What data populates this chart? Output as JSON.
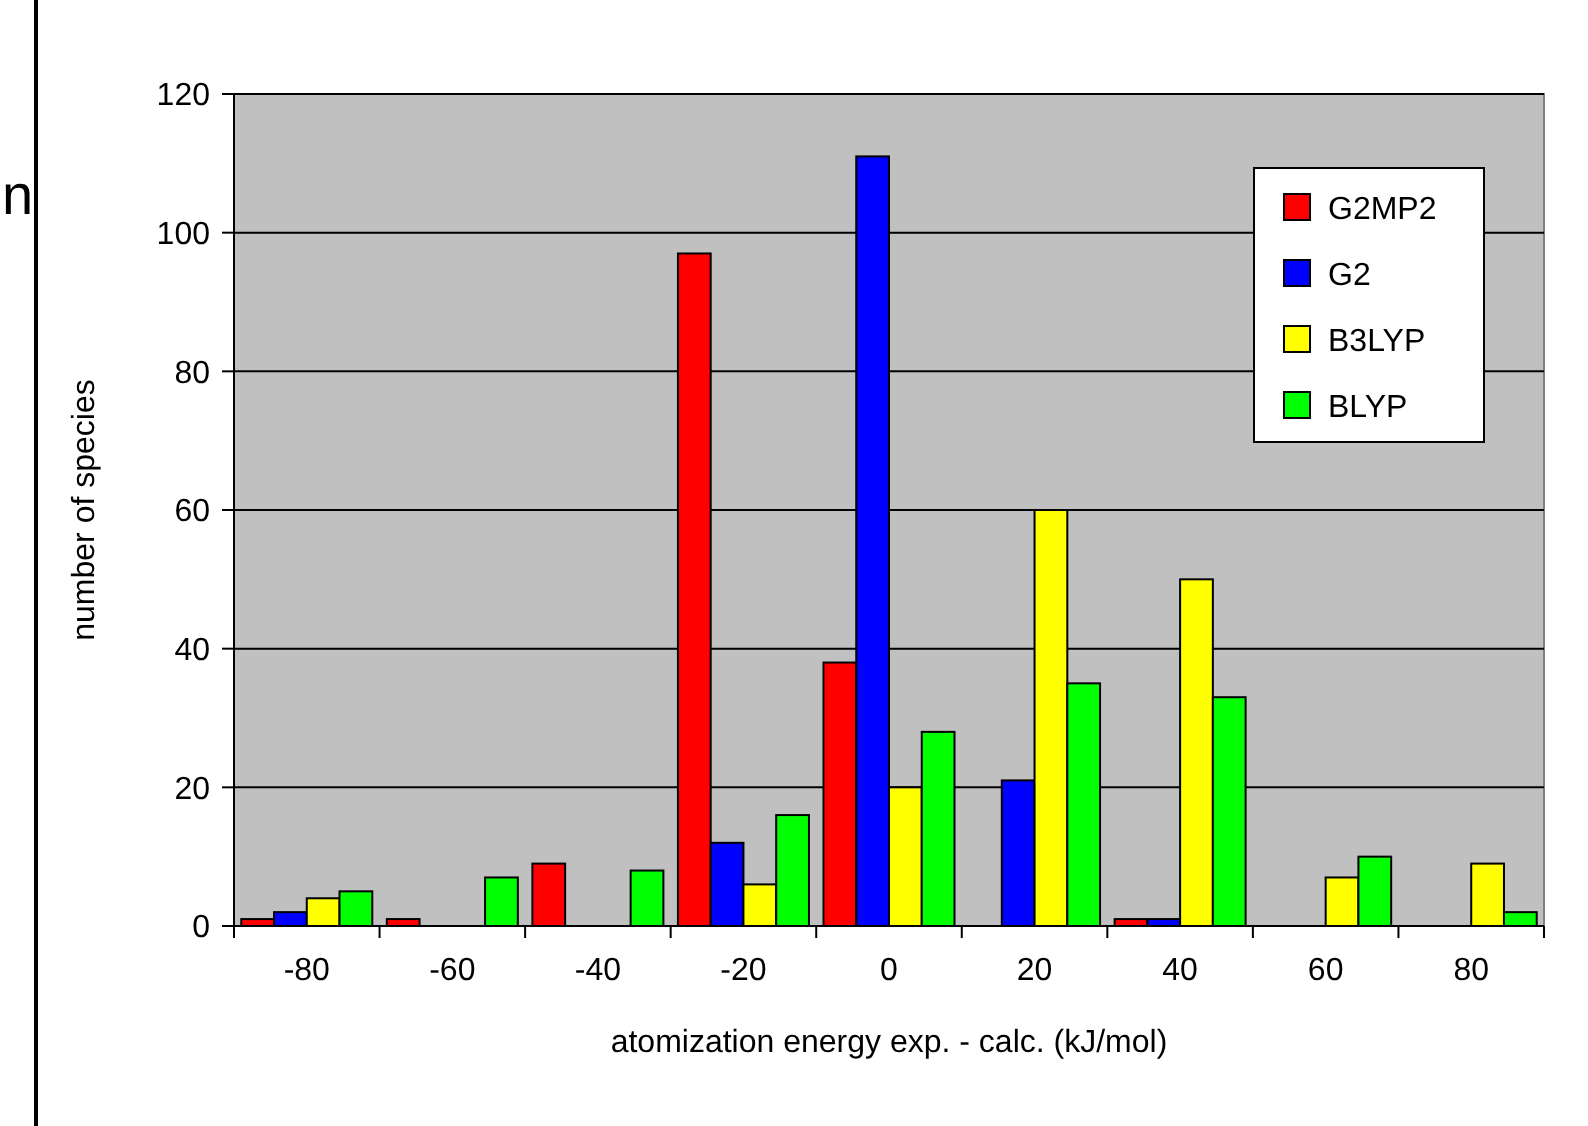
{
  "chart_data": {
    "type": "bar",
    "xlabel": "atomization energy exp. - calc. (kJ/mol)",
    "ylabel": "number of species",
    "categories": [
      "-80",
      "-60",
      "-40",
      "-20",
      "0",
      "20",
      "40",
      "60",
      "80"
    ],
    "series": [
      {
        "name": "G2MP2",
        "color": "#ff0000",
        "values": [
          1,
          1,
          9,
          97,
          38,
          0,
          1,
          0,
          0
        ]
      },
      {
        "name": "G2",
        "color": "#0000ff",
        "values": [
          2,
          0,
          0,
          12,
          111,
          21,
          1,
          0,
          0
        ]
      },
      {
        "name": "B3LYP",
        "color": "#ffff00",
        "values": [
          4,
          0,
          0,
          6,
          20,
          60,
          50,
          7,
          9
        ]
      },
      {
        "name": "BLYP",
        "color": "#00ff00",
        "values": [
          5,
          7,
          8,
          16,
          28,
          35,
          33,
          10,
          2
        ]
      }
    ],
    "ylim": [
      0,
      120
    ],
    "yticks": [
      0,
      20,
      40,
      60,
      80,
      100,
      120
    ],
    "grid": "y",
    "legend": "top right",
    "annotations": [
      "n"
    ]
  }
}
